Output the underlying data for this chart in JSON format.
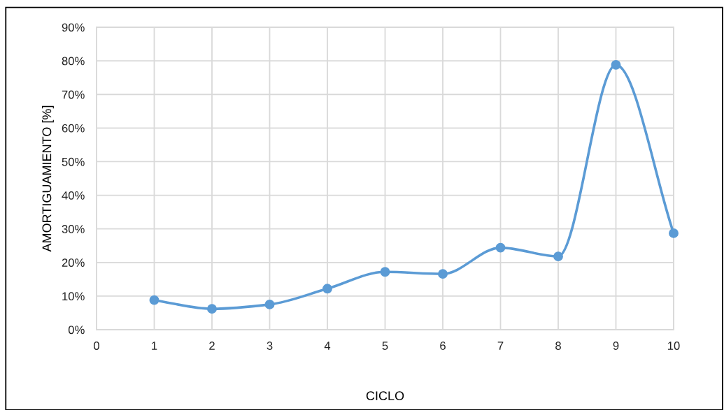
{
  "chart_data": {
    "type": "line",
    "xlabel": "CICLO",
    "ylabel": "AMORTIGUAMIENTO [%]",
    "x": [
      1,
      2,
      3,
      4,
      5,
      6,
      7,
      8,
      9,
      10
    ],
    "series": [
      {
        "color": "#5b9bd5",
        "values": [
          8.8,
          6.2,
          7.5,
          12.2,
          17.2,
          16.6,
          24.4,
          21.8,
          78.8,
          28.7
        ]
      }
    ],
    "xlim": [
      0,
      10
    ],
    "xticks": [
      0,
      1,
      2,
      3,
      4,
      5,
      6,
      7,
      8,
      9,
      10
    ],
    "ylim": [
      0,
      90
    ],
    "yticks": [
      {
        "value": 0,
        "label": "0%"
      },
      {
        "value": 10,
        "label": "10%"
      },
      {
        "value": 20,
        "label": "20%"
      },
      {
        "value": 30,
        "label": "30%"
      },
      {
        "value": 40,
        "label": "40%"
      },
      {
        "value": 50,
        "label": "50%"
      },
      {
        "value": 60,
        "label": "60%"
      },
      {
        "value": 70,
        "label": "70%"
      },
      {
        "value": 80,
        "label": "80%"
      },
      {
        "value": 90,
        "label": "90%"
      }
    ],
    "grid": true,
    "marker": "circle",
    "line_style": "solid"
  }
}
